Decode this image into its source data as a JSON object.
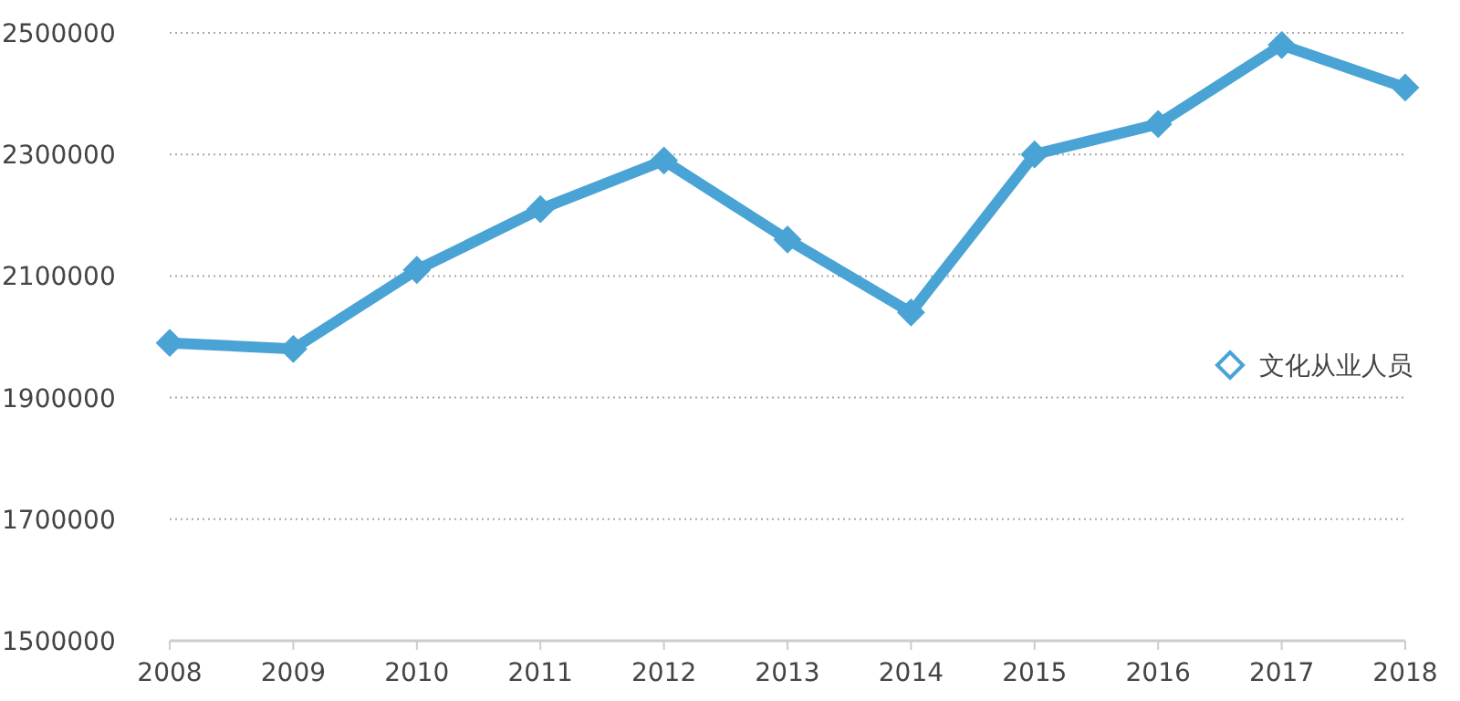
{
  "chart_data": {
    "type": "line",
    "categories": [
      "2008",
      "2009",
      "2010",
      "2011",
      "2012",
      "2013",
      "2014",
      "2015",
      "2016",
      "2017",
      "2018"
    ],
    "series": [
      {
        "name": "文化从业人员",
        "color": "#4aa3d5",
        "values": [
          1990000,
          1980000,
          2110000,
          2210000,
          2290000,
          2160000,
          2040000,
          2300000,
          2350000,
          2480000,
          2410000
        ]
      }
    ],
    "ylim": [
      1500000,
      2500000
    ],
    "yticks": [
      1500000,
      1700000,
      1900000,
      2100000,
      2300000,
      2500000
    ],
    "grid": "y",
    "legend": "right",
    "marker": "diamond",
    "line_style": "solid"
  }
}
